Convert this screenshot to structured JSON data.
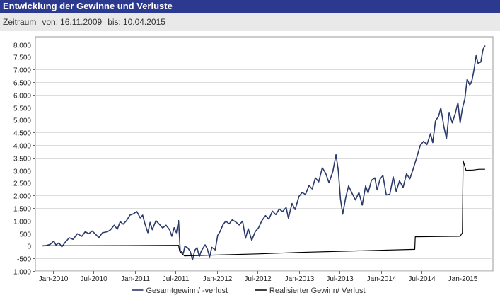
{
  "header": {
    "title": "Entwicklung der Gewinne und Verluste"
  },
  "period": {
    "label": "Zeitraum",
    "from_label": "von:",
    "from_value": "16.11.2009",
    "to_label": "bis:",
    "to_value": "10.04.2015"
  },
  "colors": {
    "title_bg": "#2b3a8f",
    "series_total": "#2b3a6b",
    "series_realized": "#000000"
  },
  "chart_data": {
    "type": "line",
    "title": "",
    "xlabel": "",
    "ylabel": "",
    "ylim": [
      -1000,
      8300
    ],
    "yticks": [
      -1000,
      -500,
      0,
      500,
      1000,
      1500,
      2000,
      2500,
      3000,
      3500,
      4000,
      4500,
      5000,
      5500,
      6000,
      6500,
      7000,
      7500,
      8000
    ],
    "ytick_labels": [
      "-1.000",
      "-500",
      "0",
      "500",
      "1.000",
      "1.500",
      "2.000",
      "2.500",
      "3.000",
      "3.500",
      "4.000",
      "4.500",
      "5.000",
      "5.500",
      "6.000",
      "6.500",
      "7.000",
      "7.500",
      "8.000"
    ],
    "xlim": [
      "2009-10-15",
      "2015-05-15"
    ],
    "xticks": [
      "2010-01-01",
      "2010-07-01",
      "2011-01-01",
      "2011-07-01",
      "2012-01-01",
      "2012-07-01",
      "2013-01-01",
      "2013-07-01",
      "2014-01-01",
      "2014-07-01",
      "2015-01-01"
    ],
    "xtick_labels": [
      "Jan-2010",
      "Jul-2010",
      "Jan-2011",
      "Jul-2011",
      "Jan-2012",
      "Jul-2012",
      "Jan-2013",
      "Jul-2013",
      "Jan-2014",
      "Jul-2014",
      "Jan-2015"
    ],
    "grid": "horizontal",
    "legend_position": "bottom",
    "series": [
      {
        "name": "Gesamtgewinn/ -verlust",
        "color": "#2b3a6b",
        "points": [
          [
            "2009-11-16",
            0
          ],
          [
            "2009-12-01",
            10
          ],
          [
            "2009-12-20",
            60
          ],
          [
            "2010-01-05",
            190
          ],
          [
            "2010-01-15",
            30
          ],
          [
            "2010-01-28",
            120
          ],
          [
            "2010-02-10",
            -40
          ],
          [
            "2010-02-25",
            140
          ],
          [
            "2010-03-15",
            320
          ],
          [
            "2010-04-01",
            260
          ],
          [
            "2010-04-20",
            480
          ],
          [
            "2010-05-10",
            380
          ],
          [
            "2010-05-25",
            560
          ],
          [
            "2010-06-10",
            480
          ],
          [
            "2010-06-25",
            590
          ],
          [
            "2010-07-10",
            460
          ],
          [
            "2010-07-25",
            330
          ],
          [
            "2010-08-10",
            520
          ],
          [
            "2010-09-01",
            560
          ],
          [
            "2010-09-15",
            640
          ],
          [
            "2010-10-01",
            820
          ],
          [
            "2010-10-15",
            660
          ],
          [
            "2010-10-28",
            960
          ],
          [
            "2010-11-10",
            860
          ],
          [
            "2010-11-25",
            1000
          ],
          [
            "2010-12-10",
            1220
          ],
          [
            "2010-12-25",
            1270
          ],
          [
            "2011-01-10",
            1360
          ],
          [
            "2011-01-25",
            1110
          ],
          [
            "2011-02-05",
            1220
          ],
          [
            "2011-02-15",
            880
          ],
          [
            "2011-02-28",
            520
          ],
          [
            "2011-03-10",
            930
          ],
          [
            "2011-03-20",
            640
          ],
          [
            "2011-04-05",
            1000
          ],
          [
            "2011-04-20",
            860
          ],
          [
            "2011-05-05",
            710
          ],
          [
            "2011-05-20",
            820
          ],
          [
            "2011-06-05",
            640
          ],
          [
            "2011-06-15",
            380
          ],
          [
            "2011-06-25",
            720
          ],
          [
            "2011-07-05",
            520
          ],
          [
            "2011-07-15",
            1000
          ],
          [
            "2011-07-22",
            -180
          ],
          [
            "2011-08-05",
            -300
          ],
          [
            "2011-08-12",
            -20
          ],
          [
            "2011-08-25",
            -80
          ],
          [
            "2011-09-05",
            -230
          ],
          [
            "2011-09-15",
            -560
          ],
          [
            "2011-09-25",
            -180
          ],
          [
            "2011-10-05",
            -70
          ],
          [
            "2011-10-15",
            -420
          ],
          [
            "2011-10-25",
            -190
          ],
          [
            "2011-11-10",
            40
          ],
          [
            "2011-11-20",
            -130
          ],
          [
            "2011-11-30",
            -440
          ],
          [
            "2011-12-10",
            -60
          ],
          [
            "2011-12-25",
            -160
          ],
          [
            "2012-01-05",
            420
          ],
          [
            "2012-01-15",
            560
          ],
          [
            "2012-01-28",
            830
          ],
          [
            "2012-02-10",
            980
          ],
          [
            "2012-02-25",
            870
          ],
          [
            "2012-03-10",
            1030
          ],
          [
            "2012-03-25",
            950
          ],
          [
            "2012-04-10",
            830
          ],
          [
            "2012-04-25",
            980
          ],
          [
            "2012-05-08",
            300
          ],
          [
            "2012-05-20",
            680
          ],
          [
            "2012-06-05",
            220
          ],
          [
            "2012-06-20",
            560
          ],
          [
            "2012-07-05",
            720
          ],
          [
            "2012-07-20",
            1000
          ],
          [
            "2012-08-05",
            1200
          ],
          [
            "2012-08-20",
            1060
          ],
          [
            "2012-09-05",
            1380
          ],
          [
            "2012-09-20",
            1240
          ],
          [
            "2012-10-05",
            1460
          ],
          [
            "2012-10-20",
            1360
          ],
          [
            "2012-11-05",
            1520
          ],
          [
            "2012-11-15",
            1100
          ],
          [
            "2012-12-01",
            1680
          ],
          [
            "2012-12-15",
            1440
          ],
          [
            "2013-01-01",
            1960
          ],
          [
            "2013-01-15",
            2120
          ],
          [
            "2013-01-30",
            2040
          ],
          [
            "2013-02-15",
            2400
          ],
          [
            "2013-03-01",
            2260
          ],
          [
            "2013-03-15",
            2700
          ],
          [
            "2013-03-30",
            2540
          ],
          [
            "2013-04-15",
            3100
          ],
          [
            "2013-04-30",
            2880
          ],
          [
            "2013-05-15",
            2500
          ],
          [
            "2013-06-01",
            2950
          ],
          [
            "2013-06-15",
            3620
          ],
          [
            "2013-06-25",
            3000
          ],
          [
            "2013-07-05",
            1860
          ],
          [
            "2013-07-15",
            1260
          ],
          [
            "2013-07-28",
            1900
          ],
          [
            "2013-08-10",
            2380
          ],
          [
            "2013-08-25",
            2100
          ],
          [
            "2013-09-10",
            1820
          ],
          [
            "2013-09-25",
            2120
          ],
          [
            "2013-10-10",
            1620
          ],
          [
            "2013-10-25",
            2380
          ],
          [
            "2013-11-05",
            2100
          ],
          [
            "2013-11-20",
            2600
          ],
          [
            "2013-12-05",
            2700
          ],
          [
            "2013-12-15",
            2220
          ],
          [
            "2013-12-28",
            2640
          ],
          [
            "2014-01-10",
            2800
          ],
          [
            "2014-01-25",
            2020
          ],
          [
            "2014-02-10",
            2060
          ],
          [
            "2014-02-25",
            2740
          ],
          [
            "2014-03-10",
            2160
          ],
          [
            "2014-03-25",
            2580
          ],
          [
            "2014-04-10",
            2320
          ],
          [
            "2014-04-25",
            2860
          ],
          [
            "2014-05-10",
            2660
          ],
          [
            "2014-05-25",
            3060
          ],
          [
            "2014-06-10",
            3520
          ],
          [
            "2014-06-25",
            3980
          ],
          [
            "2014-07-10",
            4150
          ],
          [
            "2014-07-25",
            4020
          ],
          [
            "2014-08-10",
            4450
          ],
          [
            "2014-08-20",
            4100
          ],
          [
            "2014-09-01",
            4950
          ],
          [
            "2014-09-15",
            5150
          ],
          [
            "2014-09-25",
            5480
          ],
          [
            "2014-10-08",
            4750
          ],
          [
            "2014-10-20",
            4250
          ],
          [
            "2014-11-01",
            5300
          ],
          [
            "2014-11-15",
            4880
          ],
          [
            "2014-11-28",
            5250
          ],
          [
            "2014-12-10",
            5680
          ],
          [
            "2014-12-20",
            4880
          ],
          [
            "2014-12-30",
            5450
          ],
          [
            "2015-01-10",
            5840
          ],
          [
            "2015-01-20",
            6620
          ],
          [
            "2015-02-01",
            6380
          ],
          [
            "2015-02-10",
            6550
          ],
          [
            "2015-02-20",
            7000
          ],
          [
            "2015-03-01",
            7550
          ],
          [
            "2015-03-10",
            7250
          ],
          [
            "2015-03-22",
            7300
          ],
          [
            "2015-04-01",
            7800
          ],
          [
            "2015-04-10",
            7950
          ]
        ]
      },
      {
        "name": "Realisierter Gewinn/ Verlust",
        "color": "#000000",
        "points": [
          [
            "2009-11-16",
            0
          ],
          [
            "2010-12-01",
            10
          ],
          [
            "2011-07-15",
            20
          ],
          [
            "2011-07-20",
            -220
          ],
          [
            "2011-08-01",
            -320
          ],
          [
            "2011-08-10",
            -400
          ],
          [
            "2012-07-01",
            -320
          ],
          [
            "2013-01-01",
            -260
          ],
          [
            "2013-12-10",
            -180
          ],
          [
            "2014-06-01",
            -140
          ],
          [
            "2014-06-03",
            360
          ],
          [
            "2014-12-20",
            380
          ],
          [
            "2014-12-30",
            520
          ],
          [
            "2015-01-02",
            3380
          ],
          [
            "2015-01-15",
            3000
          ],
          [
            "2015-02-15",
            3010
          ],
          [
            "2015-03-15",
            3040
          ],
          [
            "2015-04-10",
            3040
          ]
        ]
      }
    ]
  }
}
